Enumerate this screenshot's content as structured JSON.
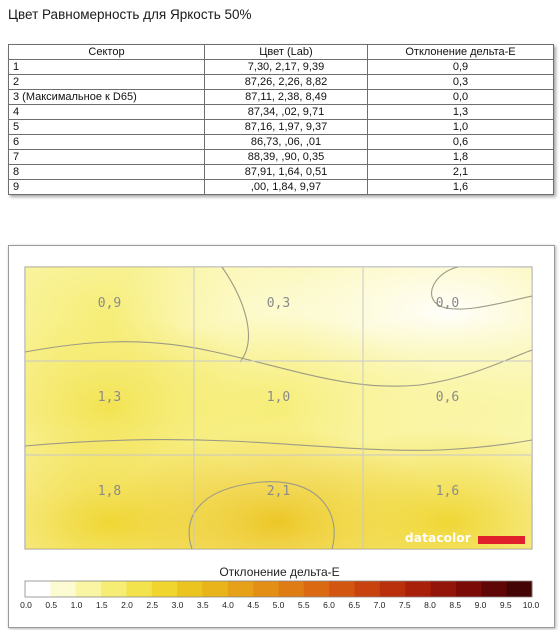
{
  "page_title": "Цвет Равномерность для Яркость 50%",
  "table": {
    "headers": [
      "Сектор",
      "Цвет (Lab)",
      "Отклонение дельта-E"
    ],
    "rows": [
      {
        "sector": "1",
        "lab": "7,30,   2,17,   9,39",
        "de": "0,9"
      },
      {
        "sector": "2",
        "lab": "87,26,   2,26,   8,82",
        "de": "0,3"
      },
      {
        "sector": "3 (Максимальное к D65)",
        "lab": "87,11,   2,38,   8,49",
        "de": "0,0"
      },
      {
        "sector": "4",
        "lab": "87,34,   ,02,   9,71",
        "de": "1,3"
      },
      {
        "sector": "5",
        "lab": "87,16,   1,97,   9,37",
        "de": "1,0"
      },
      {
        "sector": "6",
        "lab": "86,73,   ,06,    ,01",
        "de": "0,6"
      },
      {
        "sector": "7",
        "lab": "88,39,   ,90,   0,35",
        "de": "1,8"
      },
      {
        "sector": "8",
        "lab": "87,91,   1,64,   0,51",
        "de": "2,1"
      },
      {
        "sector": "9",
        "lab": " ,00,   1,84,   9,97",
        "de": "1,6"
      }
    ]
  },
  "chart_data": {
    "type": "heatmap",
    "title": "",
    "grid_rows": 3,
    "grid_cols": 3,
    "values": [
      [
        0.9,
        0.3,
        0.0
      ],
      [
        1.3,
        1.0,
        0.6
      ],
      [
        1.8,
        2.1,
        1.6
      ]
    ],
    "labels": [
      [
        "0,9",
        "0,3",
        "0,0"
      ],
      [
        "1,3",
        "1,0",
        "0,6"
      ],
      [
        "1,8",
        "2,1",
        "1,6"
      ]
    ],
    "colorbar": {
      "label": "Отклонение дельта-E",
      "min": 0.0,
      "max": 10.0,
      "ticks": [
        "0.0",
        "0.5",
        "1.0",
        "1.5",
        "2.0",
        "2.5",
        "3.0",
        "3.5",
        "4.0",
        "4.5",
        "5.0",
        "5.5",
        "6.0",
        "6.5",
        "7.0",
        "7.5",
        "8.0",
        "8.5",
        "9.0",
        "9.5",
        "10.0"
      ],
      "colors": [
        "#ffffff",
        "#fdfbd2",
        "#faf5a3",
        "#f6ed74",
        "#f2e24c",
        "#efd52e",
        "#ecc41f",
        "#e9b31a",
        "#e6a118",
        "#e38f16",
        "#df7c14",
        "#da6912",
        "#d25510",
        "#c8420e",
        "#bb300c",
        "#a9200a",
        "#931408",
        "#7a0b07",
        "#600606",
        "#450404"
      ]
    },
    "grid": true
  },
  "brand": {
    "name": "datacolor",
    "accent": "#e0212b"
  }
}
